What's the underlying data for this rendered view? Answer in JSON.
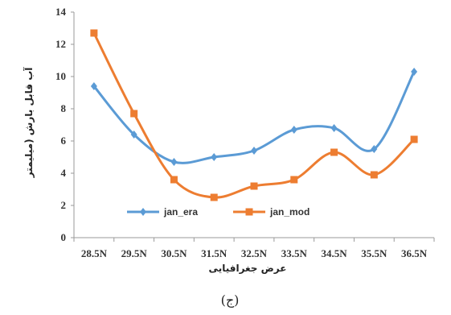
{
  "chart_data": {
    "type": "line",
    "categories": [
      "28.5N",
      "29.5N",
      "30.5N",
      "31.5N",
      "32.5N",
      "33.5N",
      "34.5N",
      "35.5N",
      "36.5N"
    ],
    "series": [
      {
        "name": "jan_era",
        "color": "#5b9bd5",
        "marker": "diamond",
        "values": [
          9.4,
          6.4,
          4.7,
          5.0,
          5.4,
          6.7,
          6.8,
          5.5,
          10.3
        ]
      },
      {
        "name": "jan_mod",
        "color": "#ed7d31",
        "marker": "square",
        "values": [
          12.7,
          7.7,
          3.6,
          2.5,
          3.2,
          3.6,
          5.3,
          3.9,
          6.1
        ]
      }
    ],
    "y_ticks": [
      "0",
      "2",
      "4",
      "6",
      "8",
      "10",
      "12",
      "14"
    ],
    "ylim": [
      0,
      14
    ],
    "ylabel": "آب قابل بارش (میلیمتر",
    "xlabel": "عرض جغرافیایی",
    "legend_position": "bottom-center",
    "grid": false,
    "smooth": true
  },
  "caption": "(ج)"
}
